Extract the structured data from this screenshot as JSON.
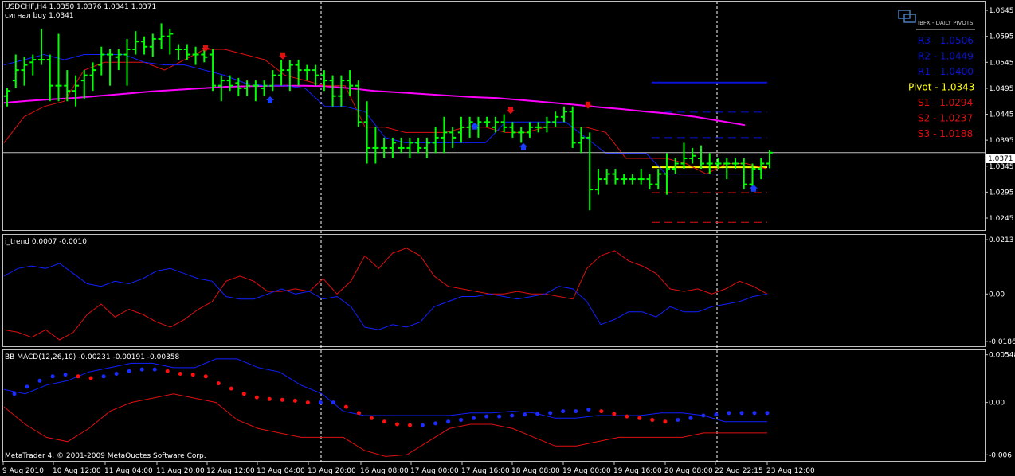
{
  "main": {
    "header_line1": "USDCHF,H4  1.0350 1.0376 1.0341 1.0371",
    "header_line2": "сигнал buy 1.0341",
    "price_label": "1.0371",
    "y_ticks": [
      "1.0645",
      "1.0595",
      "1.0545",
      "1.0495",
      "1.0445",
      "1.0395",
      "1.0345",
      "1.0295",
      "1.0245"
    ]
  },
  "pivots": {
    "logo_text": "IBFX - DAILY PIVOTS",
    "items": [
      {
        "label": "R3 - 1.0506",
        "color": "#0a14d4"
      },
      {
        "label": "R2 - 1.0449",
        "color": "#0a14d4"
      },
      {
        "label": "R1 - 1.0400",
        "color": "#0a14d4"
      },
      {
        "label": "Pivot - 1.0343",
        "color": "#ffff00"
      },
      {
        "label": "S1 - 1.0294",
        "color": "#e01010"
      },
      {
        "label": "S2 - 1.0237",
        "color": "#e01010"
      },
      {
        "label": "S3 - 1.0188",
        "color": "#e01010"
      }
    ]
  },
  "trend": {
    "header": "i_trend 0.0007 -0.0010",
    "y_ticks": [
      "0.0213",
      "0.00",
      "-0.0186"
    ]
  },
  "macd": {
    "header": "BB MACD(12,26,10) -0.00231 -0.00191 -0.00358",
    "y_ticks": [
      "0.00548",
      "0.00",
      "-0.006"
    ]
  },
  "footer": {
    "copyright": "MetaTrader 4, © 2001-2009 MetaQuotes Software Corp."
  },
  "x_axis": {
    "labels": [
      "9 Aug 2010",
      "10 Aug 12:00",
      "11 Aug 04:00",
      "11 Aug 20:00",
      "12 Aug 12:00",
      "13 Aug 04:00",
      "13 Aug 20:00",
      "16 Aug 08:00",
      "17 Aug 00:00",
      "17 Aug 16:00",
      "18 Aug 08:00",
      "19 Aug 00:00",
      "19 Aug 16:00",
      "20 Aug 08:00",
      "22 Aug 22:15",
      "23 Aug 12:00"
    ]
  },
  "colors": {
    "bars": "#00ff00",
    "ma_magenta": "#ff00ff",
    "trend_red": "#e01010",
    "trend_blue": "#1020ff",
    "pivot_yellow": "#ffff00"
  },
  "chart_data": [
    {
      "type": "bar",
      "name": "USDCHF,H4",
      "ylim": [
        1.0222,
        1.0662
      ],
      "y_ticks": [
        1.0645,
        1.0595,
        1.0545,
        1.0495,
        1.0445,
        1.0395,
        1.0345,
        1.0295,
        1.0245
      ],
      "ohlc": [
        [
          1.048,
          1.0495,
          1.046,
          1.049
        ],
        [
          1.051,
          1.056,
          1.0495,
          1.053
        ],
        [
          1.053,
          1.0555,
          1.05,
          1.054
        ],
        [
          1.0545,
          1.056,
          1.052,
          1.055
        ],
        [
          1.055,
          1.061,
          1.054,
          1.055
        ],
        [
          1.055,
          1.056,
          1.047,
          1.05
        ],
        [
          1.05,
          1.06,
          1.047,
          1.05
        ],
        [
          1.05,
          1.053,
          1.047,
          1.049
        ],
        [
          1.049,
          1.052,
          1.046,
          1.05
        ],
        [
          1.051,
          1.053,
          1.0475,
          1.052
        ],
        [
          1.052,
          1.0545,
          1.049,
          1.053
        ],
        [
          1.054,
          1.0575,
          1.052,
          1.056
        ],
        [
          1.056,
          1.057,
          1.05,
          1.056
        ],
        [
          1.0555,
          1.057,
          1.053,
          1.056
        ],
        [
          1.056,
          1.059,
          1.05,
          1.057
        ],
        [
          1.057,
          1.0605,
          1.056,
          1.0585
        ],
        [
          1.0585,
          1.0595,
          1.056,
          1.0575
        ],
        [
          1.0575,
          1.06,
          1.0555,
          1.059
        ],
        [
          1.059,
          1.062,
          1.057,
          1.0595
        ],
        [
          1.0595,
          1.061,
          1.056,
          1.06
        ],
        [
          1.057,
          1.058,
          1.055,
          1.057
        ],
        [
          1.057,
          1.058,
          1.055,
          1.056
        ],
        [
          1.056,
          1.0575,
          1.054,
          1.056
        ],
        [
          1.056,
          1.057,
          1.0545,
          1.0555
        ],
        [
          1.056,
          1.057,
          1.049,
          1.05
        ],
        [
          1.05,
          1.052,
          1.047,
          1.051
        ],
        [
          1.051,
          1.052,
          1.049,
          1.05
        ],
        [
          1.0505,
          1.0515,
          1.048,
          1.0495
        ],
        [
          1.0495,
          1.051,
          1.048,
          1.05
        ],
        [
          1.05,
          1.051,
          1.047,
          1.05
        ],
        [
          1.0495,
          1.051,
          1.048,
          1.05
        ],
        [
          1.05,
          1.053,
          1.049,
          1.052
        ],
        [
          1.052,
          1.055,
          1.05,
          1.053
        ],
        [
          1.053,
          1.055,
          1.049,
          1.054
        ],
        [
          1.054,
          1.055,
          1.05,
          1.053
        ],
        [
          1.053,
          1.054,
          1.051,
          1.053
        ],
        [
          1.053,
          1.054,
          1.05,
          1.052
        ],
        [
          1.052,
          1.053,
          1.049,
          1.051
        ],
        [
          1.051,
          1.052,
          1.046,
          1.048
        ],
        [
          1.048,
          1.052,
          1.046,
          1.051
        ],
        [
          1.051,
          1.053,
          1.048,
          1.05
        ],
        [
          1.05,
          1.051,
          1.042,
          1.043
        ],
        [
          1.043,
          1.047,
          1.035,
          1.038
        ],
        [
          1.038,
          1.042,
          1.035,
          1.038
        ],
        [
          1.038,
          1.04,
          1.036,
          1.038
        ],
        [
          1.038,
          1.04,
          1.036,
          1.039
        ],
        [
          1.038,
          1.04,
          1.037,
          1.038
        ],
        [
          1.038,
          1.04,
          1.036,
          1.039
        ],
        [
          1.039,
          1.04,
          1.037,
          1.038
        ],
        [
          1.038,
          1.04,
          1.036,
          1.039
        ],
        [
          1.039,
          1.042,
          1.037,
          1.04
        ],
        [
          1.04,
          1.044,
          1.037,
          1.041
        ],
        [
          1.041,
          1.042,
          1.038,
          1.04
        ],
        [
          1.041,
          1.044,
          1.039,
          1.042
        ],
        [
          1.042,
          1.044,
          1.04,
          1.043
        ],
        [
          1.042,
          1.044,
          1.04,
          1.043
        ],
        [
          1.043,
          1.044,
          1.042,
          1.043
        ],
        [
          1.042,
          1.044,
          1.041,
          1.043
        ],
        [
          1.043,
          1.0445,
          1.041,
          1.042
        ],
        [
          1.042,
          1.043,
          1.04,
          1.041
        ],
        [
          1.041,
          1.042,
          1.039,
          1.041
        ],
        [
          1.041,
          1.043,
          1.04,
          1.042
        ],
        [
          1.042,
          1.043,
          1.041,
          1.042
        ],
        [
          1.042,
          1.044,
          1.041,
          1.043
        ],
        [
          1.043,
          1.045,
          1.042,
          1.044
        ],
        [
          1.044,
          1.046,
          1.043,
          1.045
        ],
        [
          1.045,
          1.046,
          1.038,
          1.039
        ],
        [
          1.039,
          1.042,
          1.037,
          1.04
        ],
        [
          1.04,
          1.041,
          1.026,
          1.03
        ],
        [
          1.03,
          1.034,
          1.029,
          1.032
        ],
        [
          1.032,
          1.034,
          1.031,
          1.033
        ],
        [
          1.033,
          1.034,
          1.031,
          1.032
        ],
        [
          1.032,
          1.033,
          1.031,
          1.032
        ],
        [
          1.032,
          1.033,
          1.031,
          1.032
        ],
        [
          1.032,
          1.034,
          1.031,
          1.032
        ],
        [
          1.032,
          1.033,
          1.03,
          1.031
        ],
        [
          1.031,
          1.034,
          1.03,
          1.033
        ],
        [
          1.033,
          1.037,
          1.029,
          1.034
        ],
        [
          1.034,
          1.036,
          1.033,
          1.035
        ],
        [
          1.035,
          1.039,
          1.034,
          1.036
        ],
        [
          1.036,
          1.038,
          1.035,
          1.0365
        ],
        [
          1.036,
          1.0385,
          1.034,
          1.035
        ],
        [
          1.035,
          1.037,
          1.033,
          1.035
        ],
        [
          1.035,
          1.036,
          1.034,
          1.035
        ],
        [
          1.035,
          1.036,
          1.032,
          1.035
        ],
        [
          1.035,
          1.036,
          1.034,
          1.035
        ],
        [
          1.035,
          1.036,
          1.03,
          1.031
        ],
        [
          1.031,
          1.035,
          1.03,
          1.034
        ],
        [
          1.034,
          1.036,
          1.032,
          1.035
        ],
        [
          1.035,
          1.0376,
          1.0341,
          1.0371
        ]
      ],
      "pivot_levels": [
        1.0506,
        1.0449,
        1.04,
        1.0343,
        1.0294,
        1.0237,
        1.0188
      ],
      "ma_magenta": [
        1.0467,
        1.0471,
        1.0474,
        1.0477,
        1.0481,
        1.0485,
        1.0489,
        1.0492,
        1.0495,
        1.0498,
        1.0499,
        1.05,
        1.05,
        1.0499,
        1.0495,
        1.049,
        1.0487,
        1.0484,
        1.0481,
        1.0478,
        1.0476,
        1.0472,
        1.0468,
        1.0464,
        1.0459,
        1.0455,
        1.045,
        1.0446,
        1.044,
        1.0432,
        1.0424
      ],
      "trend_red_line": [
        1.039,
        1.044,
        1.046,
        1.047,
        1.053,
        1.0545,
        1.0545,
        1.0545,
        1.053,
        1.055,
        1.057,
        1.057,
        1.056,
        1.055,
        1.052,
        1.051,
        1.05,
        1.05,
        1.042,
        1.042,
        1.041,
        1.041,
        1.041,
        1.042,
        1.042,
        1.041,
        1.041,
        1.042,
        1.042,
        1.042,
        1.041,
        1.036,
        1.036,
        1.036,
        1.035,
        1.033,
        1.035,
        1.035,
        1.034
      ],
      "trend_blue_line": [
        1.054,
        1.055,
        1.056,
        1.055,
        1.056,
        1.056,
        1.056,
        1.0545,
        1.054,
        1.054,
        1.053,
        1.052,
        1.0505,
        1.05,
        1.05,
        1.0495,
        1.046,
        1.046,
        1.045,
        1.04,
        1.039,
        1.039,
        1.039,
        1.039,
        1.039,
        1.043,
        1.043,
        1.043,
        1.043,
        1.04,
        1.037,
        1.037,
        1.037,
        1.033,
        1.033,
        1.033,
        1.033,
        1.033,
        1.033
      ],
      "sell_arrows": [
        1.057,
        1.0555,
        1.045,
        1.046
      ],
      "buy_arrows": [
        1.0475,
        1.0425,
        1.0385,
        1.0305
      ]
    },
    {
      "type": "line",
      "name": "i_trend",
      "ylim": [
        -0.0205,
        0.0232
      ],
      "y_ticks": [
        0.0213,
        0.0,
        -0.0186
      ],
      "series": [
        {
          "color": "#e01010",
          "values": [
            -0.014,
            -0.015,
            -0.017,
            -0.014,
            -0.018,
            -0.015,
            -0.008,
            -0.004,
            -0.009,
            -0.006,
            -0.008,
            -0.011,
            -0.013,
            -0.01,
            -0.006,
            -0.003,
            0.005,
            0.007,
            0.005,
            0.001,
            0.001,
            0.002,
            0.001,
            0.006,
            0.0,
            0.005,
            0.015,
            0.01,
            0.016,
            0.018,
            0.015,
            0.007,
            0.003,
            0.002,
            0.001,
            0.0,
            0.0,
            0.001,
            0.0,
            0.0,
            -0.001,
            -0.002,
            0.01,
            0.015,
            0.017,
            0.013,
            0.011,
            0.008,
            0.002,
            0.001,
            0.002,
            0.0,
            0.002,
            0.005,
            0.003,
            0.0
          ]
        },
        {
          "color": "#1020ff",
          "values": [
            0.007,
            0.01,
            0.011,
            0.01,
            0.012,
            0.008,
            0.004,
            0.003,
            0.005,
            0.004,
            0.006,
            0.009,
            0.01,
            0.008,
            0.006,
            0.005,
            -0.001,
            -0.002,
            -0.002,
            0.0,
            0.002,
            0.0,
            0.001,
            -0.002,
            -0.001,
            -0.005,
            -0.013,
            -0.014,
            -0.012,
            -0.013,
            -0.011,
            -0.005,
            -0.003,
            -0.001,
            -0.001,
            0.0,
            -0.001,
            -0.002,
            -0.001,
            0.0,
            0.003,
            0.002,
            -0.003,
            -0.012,
            -0.01,
            -0.007,
            -0.007,
            -0.009,
            -0.005,
            -0.007,
            -0.007,
            -0.005,
            -0.004,
            -0.003,
            -0.001,
            0.0
          ]
        }
      ]
    },
    {
      "type": "line",
      "name": "BB MACD(12,26,10)",
      "ylim": [
        -0.0068,
        0.006
      ],
      "y_ticks": [
        0.00548,
        0.0,
        -0.006
      ],
      "series": [
        {
          "color": "#1020ff",
          "values": [
            0.0015,
            0.001,
            0.002,
            0.0025,
            0.0035,
            0.004,
            0.0045,
            0.0045,
            0.004,
            0.004,
            0.005,
            0.005,
            0.004,
            0.0035,
            0.002,
            0.001,
            -0.001,
            -0.0015,
            -0.0015,
            -0.0015,
            -0.0015,
            -0.0015,
            -0.0012,
            -0.0012,
            -0.001,
            -0.0012,
            -0.0018,
            -0.0018,
            -0.0015,
            -0.0015,
            -0.0015,
            -0.0012,
            -0.0012,
            -0.0015,
            -0.0022,
            -0.0022,
            -0.0022
          ]
        },
        {
          "color": "#e01010",
          "values": [
            -0.0005,
            -0.0025,
            -0.004,
            -0.0045,
            -0.003,
            -0.001,
            0.0,
            0.0005,
            0.001,
            0.0005,
            0.0,
            -0.002,
            -0.003,
            -0.0035,
            -0.004,
            -0.004,
            -0.004,
            -0.0055,
            -0.0062,
            -0.006,
            -0.0045,
            -0.003,
            -0.0025,
            -0.0025,
            -0.003,
            -0.004,
            -0.005,
            -0.005,
            -0.0045,
            -0.004,
            -0.004,
            -0.004,
            -0.004,
            -0.0035,
            -0.0035,
            -0.0035,
            -0.0035
          ]
        },
        {
          "color": "dots",
          "values": [
            0.001,
            0.0018,
            0.0025,
            0.003,
            0.0032,
            0.003,
            0.0028,
            0.003,
            0.0033,
            0.0036,
            0.0038,
            0.0038,
            0.0036,
            0.0033,
            0.0032,
            0.003,
            0.0022,
            0.0016,
            0.001,
            0.0006,
            0.0004,
            0.0003,
            0.0002,
            0.0,
            0.0,
            0.0,
            -0.0005,
            -0.0012,
            -0.0018,
            -0.0022,
            -0.0025,
            -0.0026,
            -0.0026,
            -0.0024,
            -0.0022,
            -0.002,
            -0.0018,
            -0.0016,
            -0.0016,
            -0.0015,
            -0.0014,
            -0.0013,
            -0.0012,
            -0.001,
            -0.001,
            -0.0008,
            -0.001,
            -0.0013,
            -0.0016,
            -0.0018,
            -0.002,
            -0.0022,
            -0.002,
            -0.0018,
            -0.0015,
            -0.0014,
            -0.0012,
            -0.0012,
            -0.0012,
            -0.0012
          ]
        }
      ]
    }
  ]
}
